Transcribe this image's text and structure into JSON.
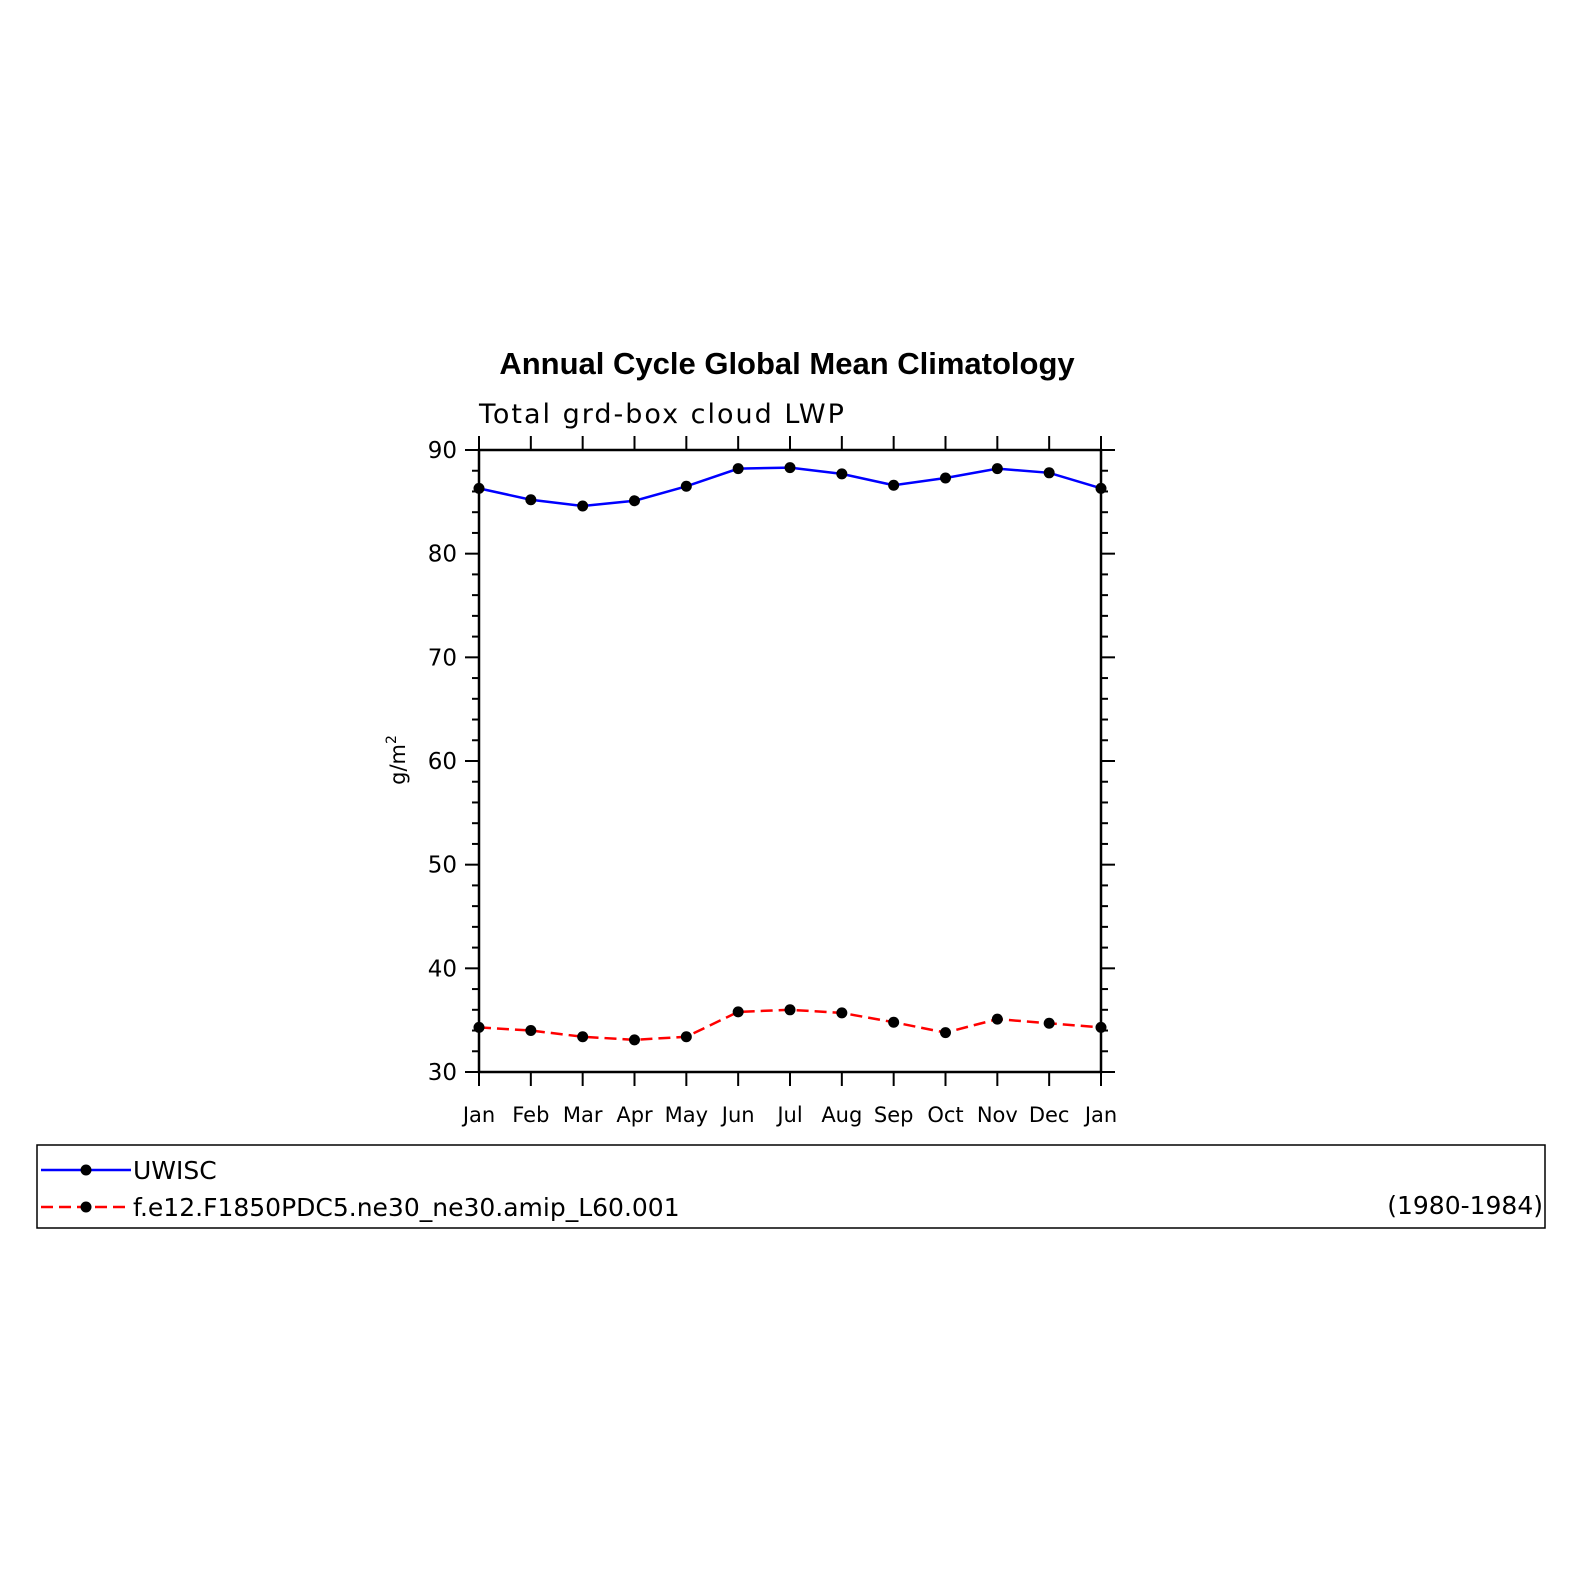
{
  "chart_data": {
    "type": "line",
    "title": "Annual Cycle Global Mean Climatology",
    "subtitle": "Total grd-box cloud LWP",
    "ylabel": "g/m",
    "ylabel_superscript": "2",
    "ylim": [
      30,
      90
    ],
    "yticks": [
      30,
      40,
      50,
      60,
      70,
      80,
      90
    ],
    "categories": [
      "Jan",
      "Feb",
      "Mar",
      "Apr",
      "May",
      "Jun",
      "Jul",
      "Aug",
      "Sep",
      "Oct",
      "Nov",
      "Dec",
      "Jan"
    ],
    "series": [
      {
        "name": "UWISC",
        "color": "#0000ff",
        "dash": "solid",
        "marker": "filled-circle",
        "values": [
          86.3,
          85.2,
          84.6,
          85.1,
          86.5,
          88.2,
          88.3,
          87.7,
          86.6,
          87.3,
          88.2,
          87.8,
          86.3
        ]
      },
      {
        "name": "f.e12.F1850PDC5.ne30_ne30.amip_L60.001",
        "color": "#ff0000",
        "dash": "dashed",
        "marker": "filled-circle",
        "values": [
          34.3,
          34.0,
          33.4,
          33.1,
          33.4,
          35.8,
          36.0,
          35.7,
          34.8,
          33.8,
          35.1,
          34.7,
          34.3
        ]
      }
    ],
    "legend": {
      "placement": "bottom",
      "note": "(1980-1984)"
    },
    "grid": false
  }
}
